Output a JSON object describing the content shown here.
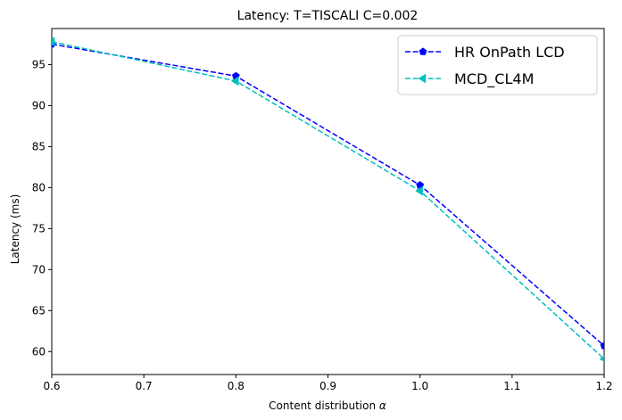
{
  "chart_data": {
    "type": "line",
    "title": "Latency: T=TISCALI C=0.002",
    "xlabel_text": "Content distribution ",
    "xlabel_symbol": "α",
    "ylabel": "Latency (ms)",
    "xlim": [
      0.6,
      1.2
    ],
    "ylim": [
      57.2,
      99.4
    ],
    "xticks": [
      0.6,
      0.7,
      0.8,
      0.9,
      1.0,
      1.1,
      1.2
    ],
    "xtick_labels": [
      "0.6",
      "0.7",
      "0.8",
      "0.9",
      "1.0",
      "1.1",
      "1.2"
    ],
    "yticks": [
      60,
      65,
      70,
      75,
      80,
      85,
      90,
      95
    ],
    "ytick_labels": [
      "60",
      "65",
      "70",
      "75",
      "80",
      "85",
      "90",
      "95"
    ],
    "grid": false,
    "legend_position": "top-right",
    "x": [
      0.6,
      0.8,
      1.0,
      1.2
    ],
    "series": [
      {
        "name": "HR OnPath LCD",
        "values": [
          97.5,
          93.6,
          80.3,
          60.7
        ],
        "color": "#0000ff",
        "marker": "pentagon",
        "linestyle": "dashed"
      },
      {
        "name": "MCD_CL4M",
        "values": [
          97.8,
          93.0,
          79.6,
          59.1
        ],
        "color": "#00bfbf",
        "marker": "triangle-left",
        "linestyle": "dashed"
      }
    ]
  }
}
